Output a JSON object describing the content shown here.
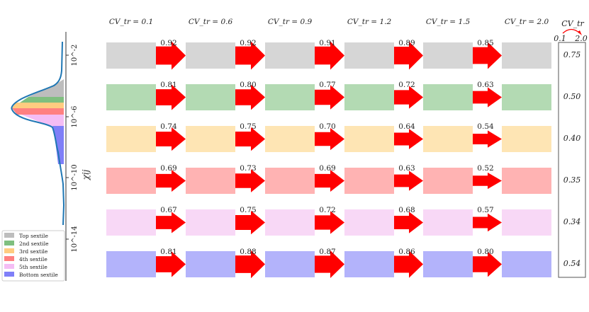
{
  "column_headers": [
    "CV_tr = 0.1",
    "CV_tr = 0.6",
    "CV_tr = 0.9",
    "CV_tr = 1.2",
    "CV_tr = 1.5",
    "CV_tr = 2.0"
  ],
  "column_cv": [
    "0.1",
    "0.6",
    "0.9",
    "1.2",
    "1.5",
    "2.0"
  ],
  "cv_symbol": "CV",
  "cv_subscript": "tr",
  "summary": {
    "header": "CV_tr",
    "range_start": "0.1",
    "range_end": "2.0",
    "values": [
      "0.75",
      "0.50",
      "0.40",
      "0.35",
      "0.34",
      "0.54"
    ]
  },
  "rows": [
    {
      "name": "Top sextile",
      "color": "#d6d6d6",
      "arrows": [
        "0.92",
        "0.92",
        "0.91",
        "0.89",
        "0.85"
      ]
    },
    {
      "name": "2nd sextile",
      "color": "#b3dab3",
      "arrows": [
        "0.81",
        "0.80",
        "0.77",
        "0.72",
        "0.63"
      ]
    },
    {
      "name": "3rd sextile",
      "color": "#fee5b4",
      "arrows": [
        "0.74",
        "0.75",
        "0.70",
        "0.64",
        "0.54"
      ]
    },
    {
      "name": "4th sextile",
      "color": "#ffb3b3",
      "arrows": [
        "0.69",
        "0.73",
        "0.69",
        "0.63",
        "0.52"
      ]
    },
    {
      "name": "5th sextile",
      "color": "#f8d8f6",
      "arrows": [
        "0.67",
        "0.75",
        "0.72",
        "0.68",
        "0.57"
      ]
    },
    {
      "name": "Bottom sextile",
      "color": "#b3b3fb",
      "arrows": [
        "0.81",
        "0.88",
        "0.87",
        "0.86",
        "0.80"
      ]
    }
  ],
  "distribution": {
    "axis_label": "χij",
    "ticks": [
      "10^-2",
      "10^-6",
      "10^-10",
      "10^-14"
    ],
    "band_colors": [
      "#bdbdbd",
      "#7fbf7f",
      "#ffcc80",
      "#ff8080",
      "#f4bdf4",
      "#7f7ff8"
    ],
    "curve_color": "#1f77b4"
  },
  "arrow_color": "#ff0000"
}
